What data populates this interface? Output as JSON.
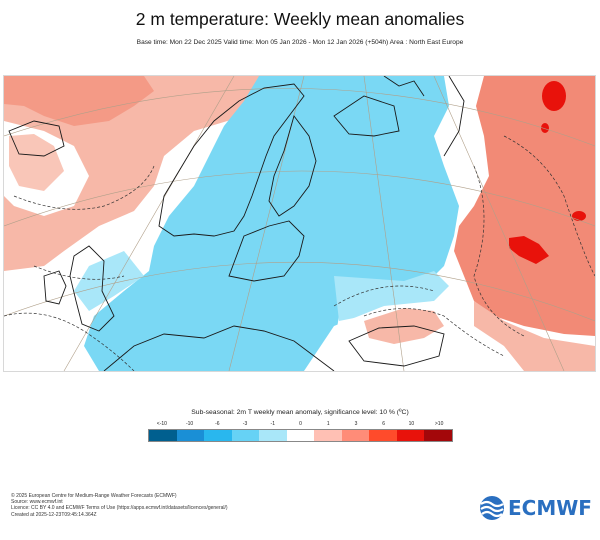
{
  "header": {
    "title": "2 m temperature: Weekly mean anomalies",
    "subtitle": "Base time: Mon 22 Dec 2025 Valid time: Mon 05 Jan 2026 - Mon 12 Jan 2026 (+504h) Area : North East Europe"
  },
  "map": {
    "area": "North East Europe",
    "colors": {
      "land_coast": "#1a1a1a",
      "graticule": "#b0a08a",
      "contour": "#333333"
    },
    "anomaly_regions": [
      {
        "region": "Scandinavia, Baltic, Central and Eastern Europe",
        "category": "-3 to -1",
        "color": "#7ad8f4"
      },
      {
        "region": "Iberian / British Isles outskirts and Black Sea area",
        "category": "0 to 1",
        "color": "#ffffff"
      },
      {
        "region": "Western Russia",
        "category": "3 to 6",
        "color": "#f28a76"
      },
      {
        "region": "Atlantic / Greenland sector",
        "category": "1 to 3",
        "color": "#f7b8a8"
      }
    ]
  },
  "legend": {
    "title": "Sub-seasonal: 2m T weekly mean anomaly, significance level: 10 % (ºC)",
    "ticks": [
      "<-10",
      "-10",
      "-6",
      "-3",
      "-1",
      "0",
      "1",
      "3",
      "6",
      "10",
      ">10"
    ],
    "colors": [
      "#005f8f",
      "#1a8fd6",
      "#29b7ee",
      "#66d2f5",
      "#a9e7f9",
      "#ffffff",
      "#ffc0b4",
      "#ff8c78",
      "#ff4b2b",
      "#e8120b",
      "#a3070a"
    ]
  },
  "footer": {
    "lines": [
      "© 2025 European Centre for Medium-Range Weather Forecasts (ECMWF)",
      "Source: www.ecmwf.int",
      "Licence: CC BY 4.0 and ECMWF Terms of Use (https://apps.ecmwf.int/datasets/licences/general/)",
      "Created at 2025-12-23T09:45:14.364Z"
    ]
  },
  "brand": {
    "name": "ECMWF",
    "color": "#2a6fc0"
  }
}
